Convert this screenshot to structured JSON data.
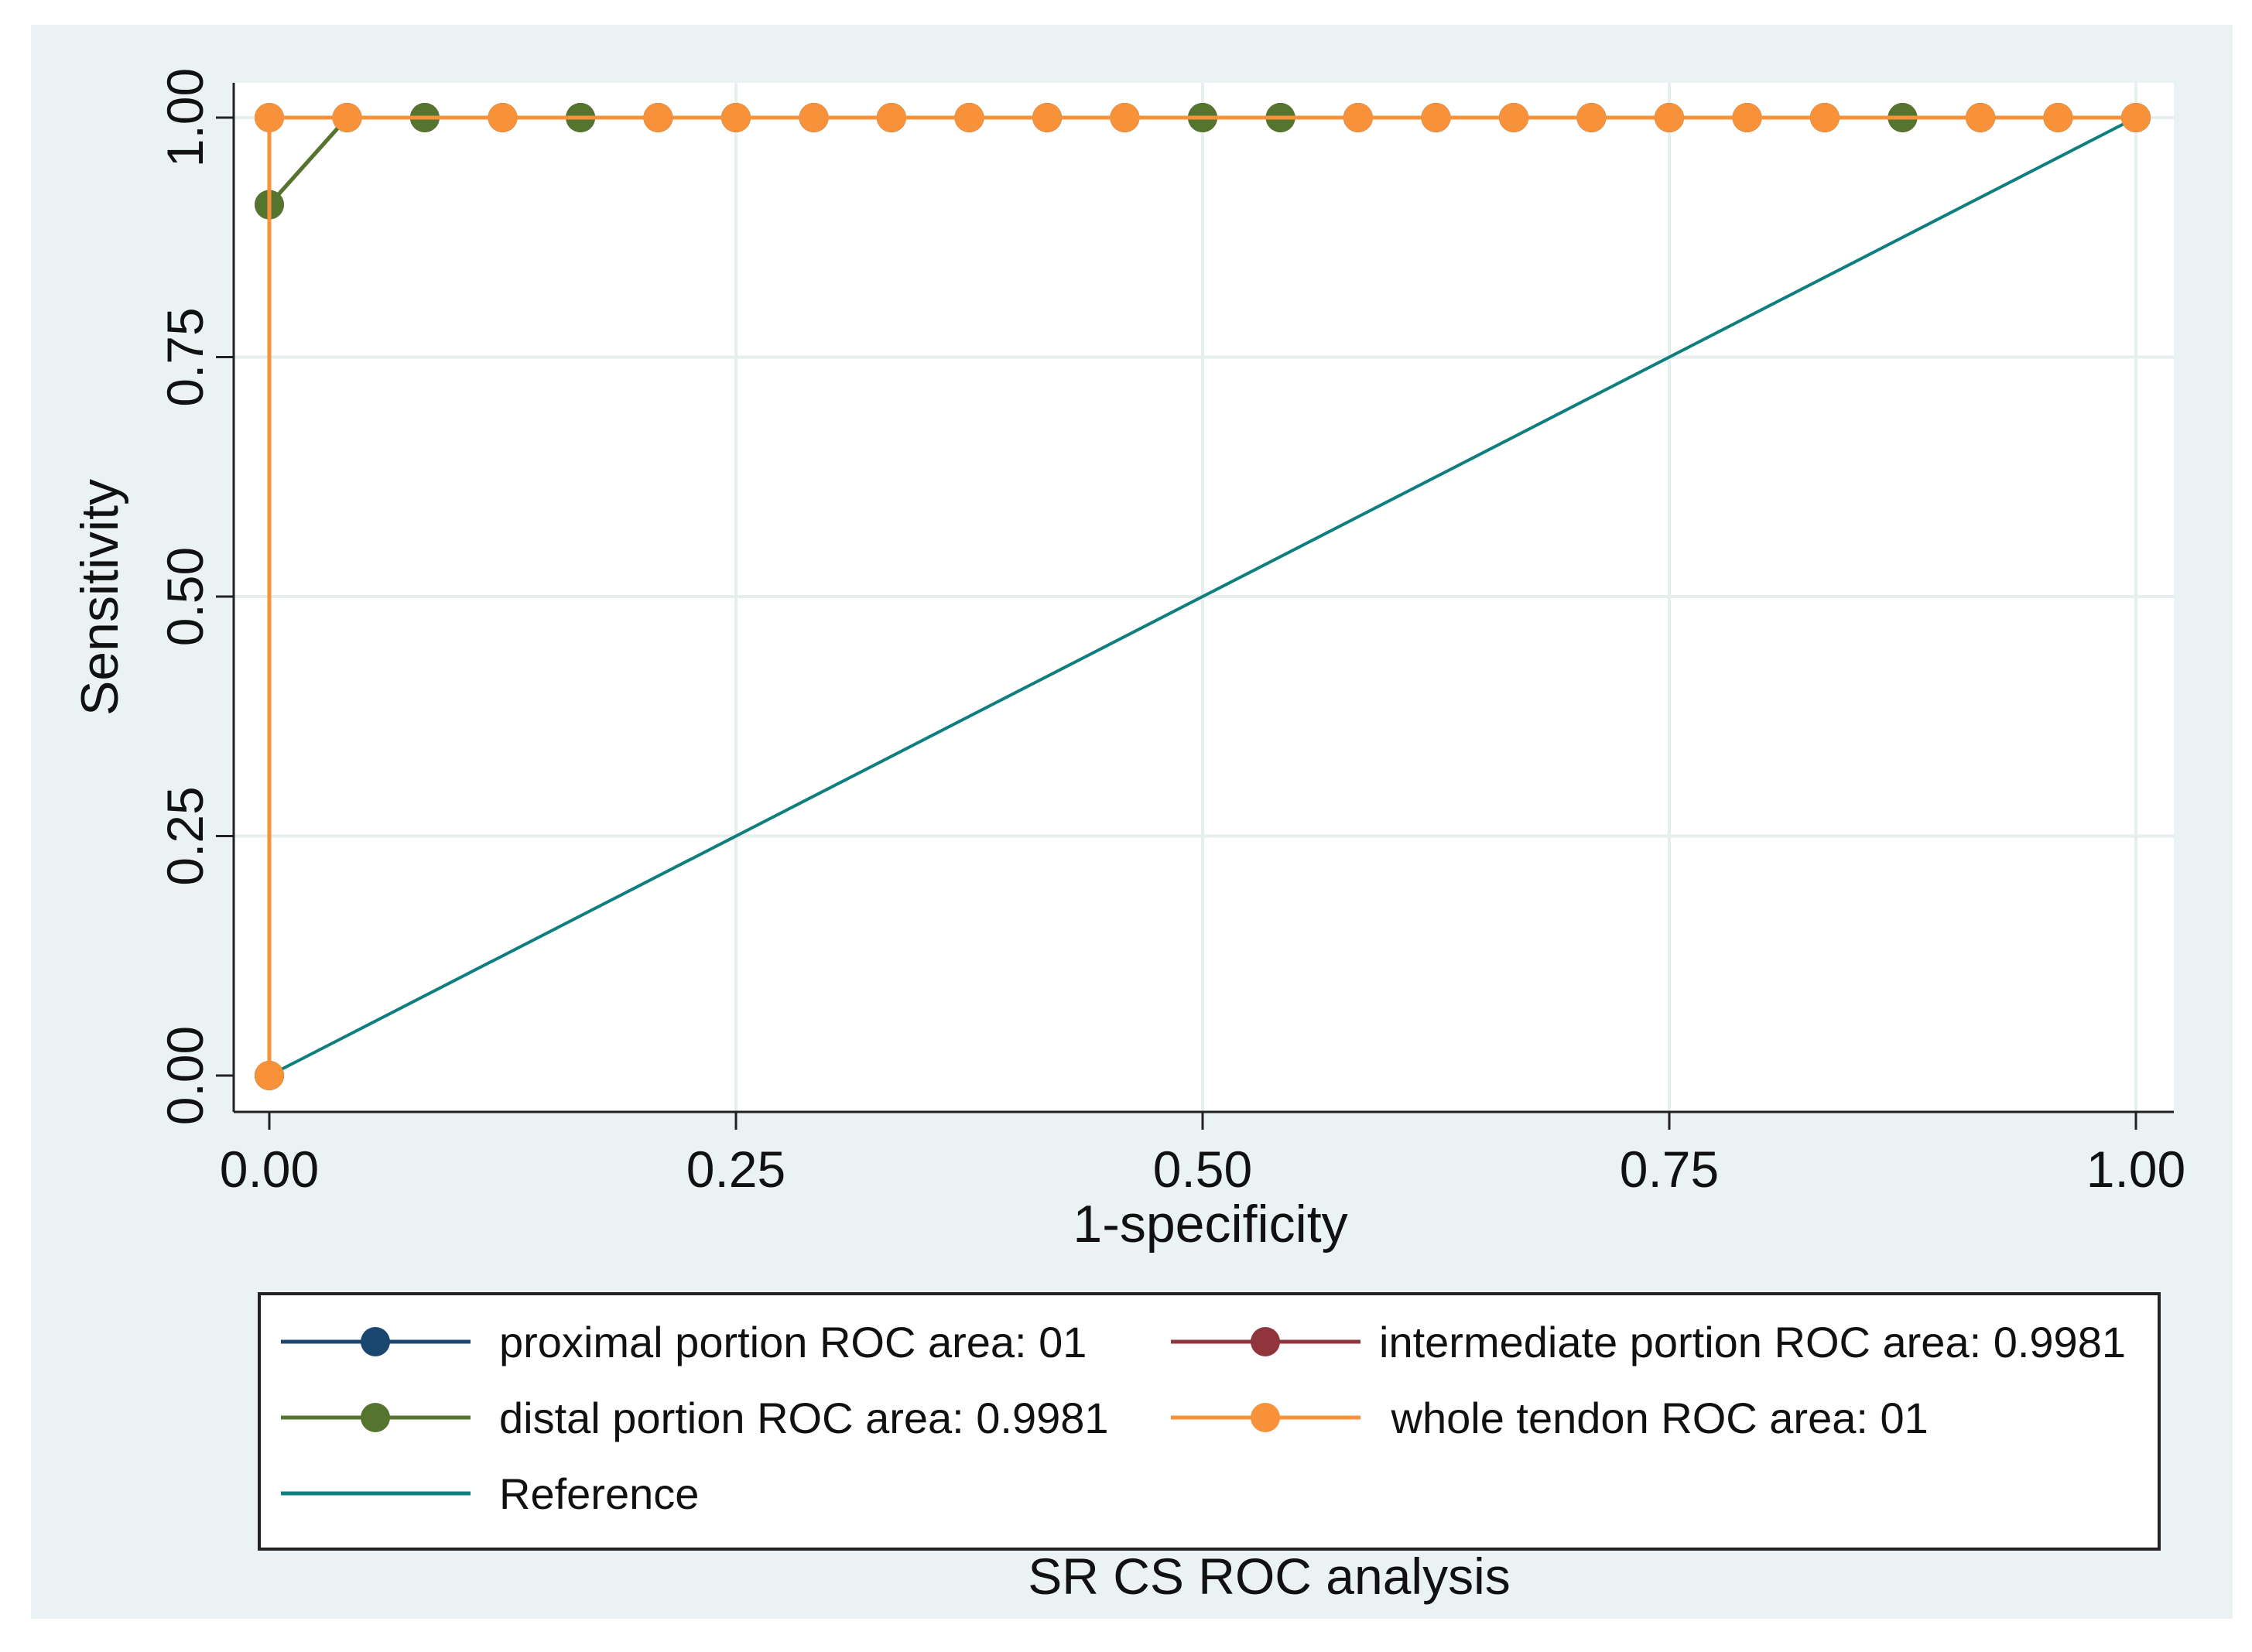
{
  "chart_data": {
    "type": "line",
    "title": "",
    "note": "SR CS ROC analysis",
    "xlabel": "1-specificity",
    "ylabel": "Sensitivity",
    "xlim": [
      0,
      1
    ],
    "ylim": [
      0,
      1
    ],
    "xticks": [
      0,
      0.25,
      0.5,
      0.75,
      1
    ],
    "yticks": [
      0,
      0.25,
      0.5,
      0.75,
      1
    ],
    "xtick_labels": [
      "0.00",
      "0.25",
      "0.50",
      "0.75",
      "1.00"
    ],
    "ytick_labels": [
      "0.00",
      "0.25",
      "0.50",
      "0.75",
      "1.00"
    ],
    "grid": true,
    "series": [
      {
        "name": "proximal portion ROC area: 01",
        "color": "#1a476f",
        "markers": true,
        "x": [
          0,
          0,
          0.0417,
          0.0833,
          0.125,
          0.1667,
          0.2083,
          0.25,
          0.2917,
          0.3333,
          0.375,
          0.4167,
          0.4583,
          0.5,
          0.5417,
          0.5833,
          0.625,
          0.6667,
          0.7083,
          0.75,
          0.7917,
          0.8333,
          0.875,
          0.9167,
          0.9583,
          1
        ],
        "y": [
          0,
          1,
          1,
          1,
          1,
          1,
          1,
          1,
          1,
          1,
          1,
          1,
          1,
          1,
          1,
          1,
          1,
          1,
          1,
          1,
          1,
          1,
          1,
          1,
          1,
          1
        ]
      },
      {
        "name": "intermediate portion ROC area: 0.9981",
        "color": "#90353b",
        "markers": true,
        "x": [
          0,
          0,
          0.0417,
          0.0833,
          0.125,
          0.1667,
          0.2083,
          0.25,
          0.2917,
          0.3333,
          0.375,
          0.4167,
          0.4583,
          0.5,
          0.5417,
          0.5833,
          0.625,
          0.6667,
          0.7083,
          0.75,
          0.7917,
          0.8333,
          0.875,
          0.9167,
          0.9583,
          1
        ],
        "y": [
          0,
          0.9091,
          1,
          1,
          1,
          1,
          1,
          1,
          1,
          1,
          1,
          1,
          1,
          1,
          1,
          1,
          1,
          1,
          1,
          1,
          1,
          1,
          1,
          1,
          1,
          1
        ]
      },
      {
        "name": "distal portion ROC area: 0.9981",
        "color": "#55752f",
        "markers": true,
        "x": [
          0,
          0,
          0.0417,
          0.0833,
          0.125,
          0.1667,
          0.2083,
          0.25,
          0.2917,
          0.3333,
          0.375,
          0.4167,
          0.4583,
          0.5,
          0.5417,
          0.5833,
          0.625,
          0.6667,
          0.7083,
          0.75,
          0.7917,
          0.8333,
          0.875,
          0.9167,
          0.9583,
          1
        ],
        "y": [
          0,
          0.9091,
          1,
          1,
          1,
          1,
          1,
          1,
          1,
          1,
          1,
          1,
          1,
          1,
          1,
          1,
          1,
          1,
          1,
          1,
          1,
          1,
          1,
          1,
          1,
          1
        ]
      },
      {
        "name": " whole tendon ROC area: 01",
        "color": "#f7923a",
        "markers": true,
        "x": [
          0,
          0,
          0.0417,
          0.125,
          0.2083,
          0.25,
          0.2917,
          0.3333,
          0.375,
          0.4167,
          0.4583,
          0.5833,
          0.625,
          0.6667,
          0.7083,
          0.75,
          0.7917,
          0.8333,
          0.9167,
          0.9583,
          1
        ],
        "y": [
          0,
          1,
          1,
          1,
          1,
          1,
          1,
          1,
          1,
          1,
          1,
          1,
          1,
          1,
          1,
          1,
          1,
          1,
          1,
          1,
          1
        ]
      },
      {
        "name": "Reference",
        "color": "#0f7e7e",
        "markers": false,
        "x": [
          0,
          1
        ],
        "y": [
          0,
          1
        ]
      }
    ],
    "legend_position": "bottom"
  }
}
